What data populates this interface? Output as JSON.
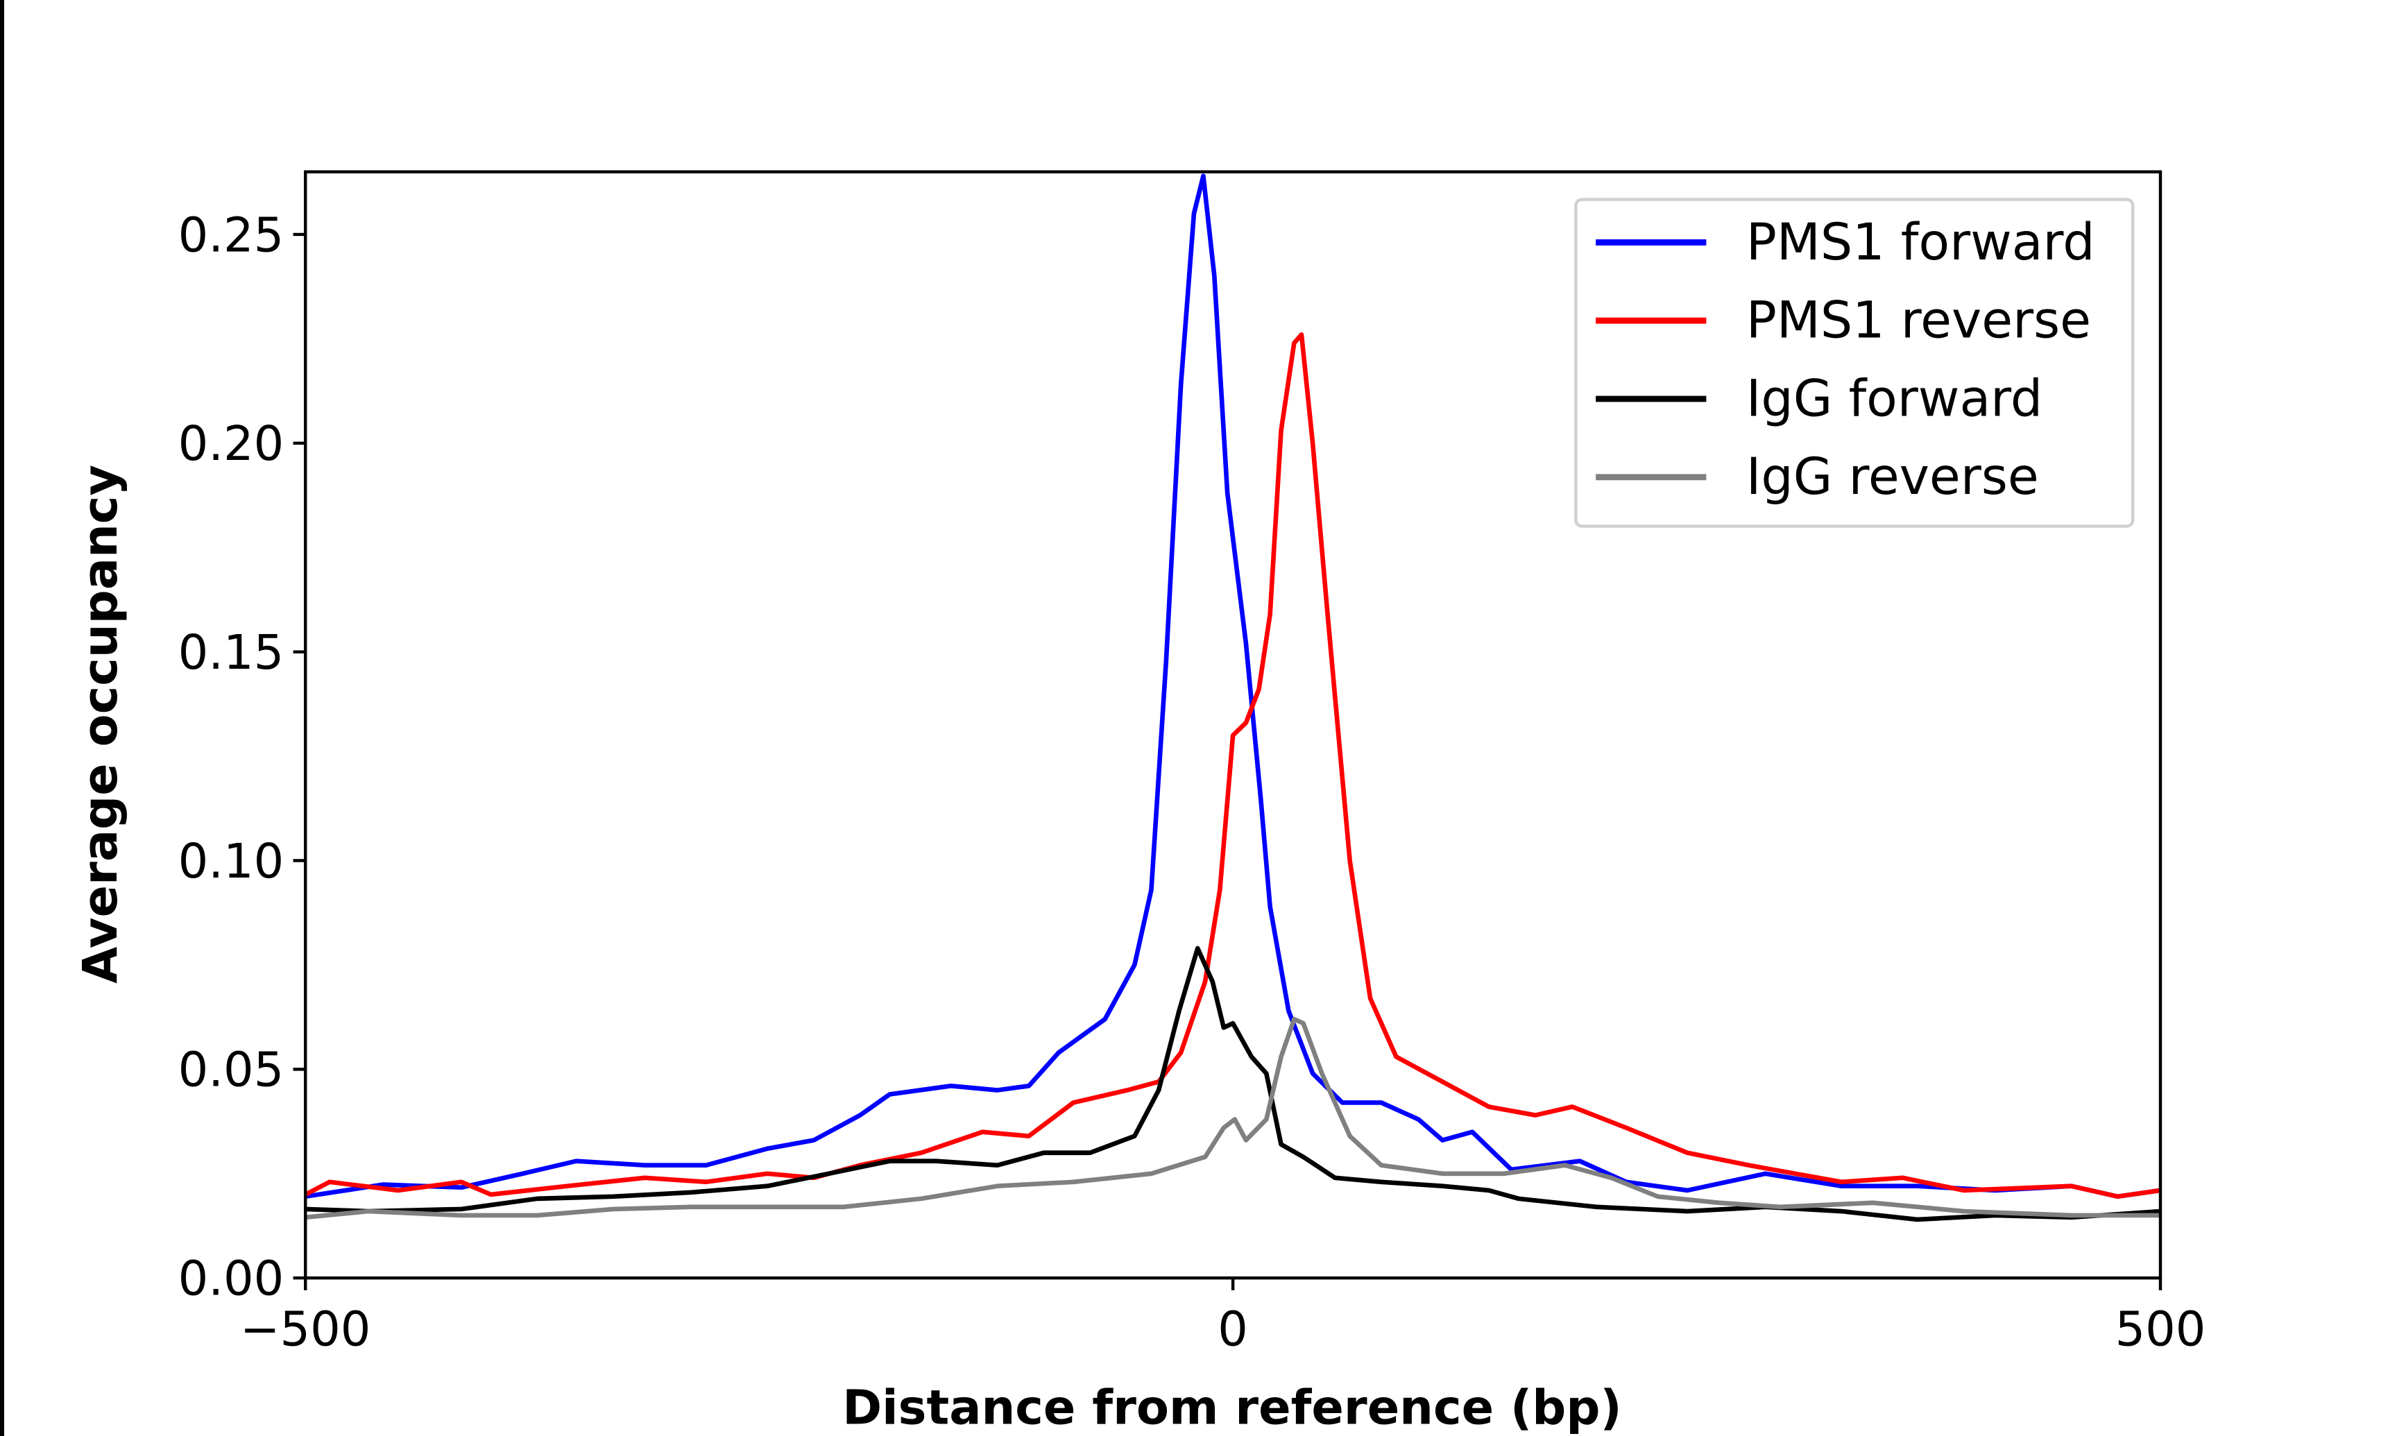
{
  "chart_data": {
    "type": "line",
    "title": "",
    "xlabel": "Distance from reference (bp)",
    "ylabel": "Average occupancy",
    "xlim": [
      -500,
      500
    ],
    "ylim": [
      0,
      0.265
    ],
    "xticks": [
      -500,
      0,
      500
    ],
    "xtick_labels": [
      "−500",
      "0",
      "500"
    ],
    "yticks": [
      0,
      0.05,
      0.1,
      0.15,
      0.2,
      0.25
    ],
    "ytick_labels": [
      "0.00",
      "0.05",
      "0.10",
      "0.15",
      "0.20",
      "0.25"
    ],
    "grid": false,
    "legend_position": "top-right",
    "series": [
      {
        "name": "PMS1 forward",
        "color": "#0000ff",
        "x": [
          -500,
          -458,
          -416,
          -383,
          -354,
          -317,
          -284,
          -251,
          -226,
          -201,
          -185,
          -152,
          -127,
          -110,
          -94,
          -69,
          -53,
          -44,
          -36,
          -28,
          -21,
          -16,
          -10,
          -3,
          7,
          15,
          20,
          30,
          43,
          59,
          80,
          100,
          113,
          129,
          150,
          187,
          212,
          245,
          287,
          328,
          369,
          411,
          452,
          477,
          500
        ],
        "y": [
          0.0195,
          0.0224,
          0.0217,
          0.025,
          0.028,
          0.027,
          0.027,
          0.031,
          0.033,
          0.039,
          0.044,
          0.046,
          0.045,
          0.046,
          0.054,
          0.062,
          0.075,
          0.093,
          0.148,
          0.214,
          0.255,
          0.264,
          0.24,
          0.188,
          0.152,
          0.115,
          0.089,
          0.064,
          0.049,
          0.042,
          0.042,
          0.038,
          0.033,
          0.035,
          0.026,
          0.028,
          0.023,
          0.021,
          0.025,
          0.022,
          0.022,
          0.021,
          0.022,
          0.0195,
          0.021
        ]
      },
      {
        "name": "PMS1 reverse",
        "color": "#ff0000",
        "x": [
          -500,
          -487,
          -450,
          -416,
          -400,
          -359,
          -317,
          -284,
          -251,
          -226,
          -201,
          -168,
          -135,
          -110,
          -86,
          -57,
          -40,
          -28,
          -15,
          -7,
          0,
          7,
          14,
          20,
          26,
          33,
          37,
          43,
          51,
          63,
          74,
          88,
          113,
          138,
          163,
          183,
          212,
          245,
          278,
          328,
          361,
          394,
          452,
          477,
          500
        ],
        "y": [
          0.02,
          0.023,
          0.021,
          0.023,
          0.02,
          0.022,
          0.024,
          0.023,
          0.025,
          0.024,
          0.027,
          0.03,
          0.035,
          0.034,
          0.042,
          0.045,
          0.047,
          0.054,
          0.071,
          0.093,
          0.13,
          0.133,
          0.141,
          0.159,
          0.203,
          0.224,
          0.226,
          0.2,
          0.159,
          0.1,
          0.067,
          0.053,
          0.047,
          0.041,
          0.039,
          0.041,
          0.036,
          0.03,
          0.027,
          0.023,
          0.024,
          0.021,
          0.022,
          0.0195,
          0.021
        ]
      },
      {
        "name": "IgG forward",
        "color": "#000000",
        "x": [
          -500,
          -466,
          -416,
          -375,
          -334,
          -292,
          -251,
          -218,
          -185,
          -160,
          -127,
          -102,
          -77,
          -53,
          -40,
          -29,
          -19,
          -11,
          -5,
          0,
          10,
          18,
          26,
          38,
          55,
          80,
          113,
          138,
          154,
          196,
          245,
          287,
          328,
          369,
          411,
          452,
          500
        ],
        "y": [
          0.0165,
          0.016,
          0.0165,
          0.019,
          0.0195,
          0.0205,
          0.022,
          0.025,
          0.028,
          0.028,
          0.027,
          0.03,
          0.03,
          0.034,
          0.045,
          0.064,
          0.079,
          0.071,
          0.06,
          0.061,
          0.053,
          0.049,
          0.032,
          0.029,
          0.024,
          0.023,
          0.022,
          0.021,
          0.019,
          0.017,
          0.016,
          0.017,
          0.016,
          0.014,
          0.015,
          0.0145,
          0.016
        ]
      },
      {
        "name": "IgG reverse",
        "color": "#808080",
        "x": [
          -500,
          -466,
          -416,
          -375,
          -334,
          -292,
          -251,
          -210,
          -168,
          -127,
          -86,
          -44,
          -15,
          -5,
          1,
          7,
          18,
          26,
          33,
          38,
          48,
          63,
          80,
          113,
          146,
          179,
          204,
          229,
          262,
          295,
          345,
          394,
          452,
          500
        ],
        "y": [
          0.0145,
          0.016,
          0.015,
          0.015,
          0.0165,
          0.017,
          0.017,
          0.017,
          0.019,
          0.022,
          0.023,
          0.025,
          0.029,
          0.036,
          0.038,
          0.033,
          0.038,
          0.053,
          0.062,
          0.061,
          0.049,
          0.034,
          0.027,
          0.025,
          0.025,
          0.027,
          0.024,
          0.0195,
          0.018,
          0.017,
          0.018,
          0.016,
          0.015,
          0.015
        ]
      }
    ]
  }
}
